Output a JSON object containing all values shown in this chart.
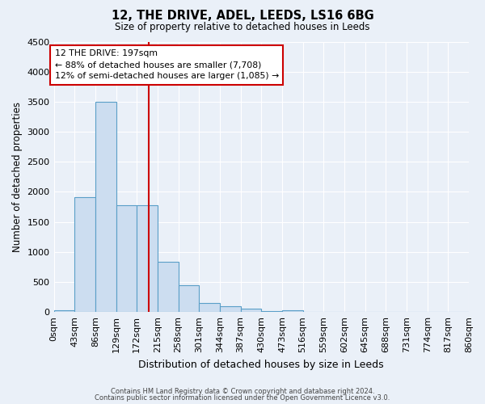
{
  "title": "12, THE DRIVE, ADEL, LEEDS, LS16 6BG",
  "subtitle": "Size of property relative to detached houses in Leeds",
  "xlabel": "Distribution of detached houses by size in Leeds",
  "ylabel": "Number of detached properties",
  "footnote1": "Contains HM Land Registry data © Crown copyright and database right 2024.",
  "footnote2": "Contains public sector information licensed under the Open Government Licence v3.0.",
  "bin_labels": [
    "0sqm",
    "43sqm",
    "86sqm",
    "129sqm",
    "172sqm",
    "215sqm",
    "258sqm",
    "301sqm",
    "344sqm",
    "387sqm",
    "430sqm",
    "473sqm",
    "516sqm",
    "559sqm",
    "602sqm",
    "645sqm",
    "688sqm",
    "731sqm",
    "774sqm",
    "817sqm",
    "860sqm"
  ],
  "bar_heights": [
    30,
    1910,
    3500,
    1780,
    1780,
    840,
    450,
    155,
    90,
    50,
    20,
    30,
    0,
    0,
    0,
    0,
    0,
    0,
    0,
    0
  ],
  "bar_color": "#ccddf0",
  "bar_edge_color": "#5a9fc8",
  "bg_color": "#eaf0f8",
  "grid_color": "#ffffff",
  "vline_x": 197,
  "vline_color": "#cc0000",
  "annotation_line1": "12 THE DRIVE: 197sqm",
  "annotation_line2": "← 88% of detached houses are smaller (7,708)",
  "annotation_line3": "12% of semi-detached houses are larger (1,085) →",
  "annotation_box_color": "#ffffff",
  "annotation_box_edge": "#cc0000",
  "ylim": [
    0,
    4500
  ],
  "bin_edges": [
    0,
    43,
    86,
    129,
    172,
    215,
    258,
    301,
    344,
    387,
    430,
    473,
    516,
    559,
    602,
    645,
    688,
    731,
    774,
    817,
    860
  ]
}
